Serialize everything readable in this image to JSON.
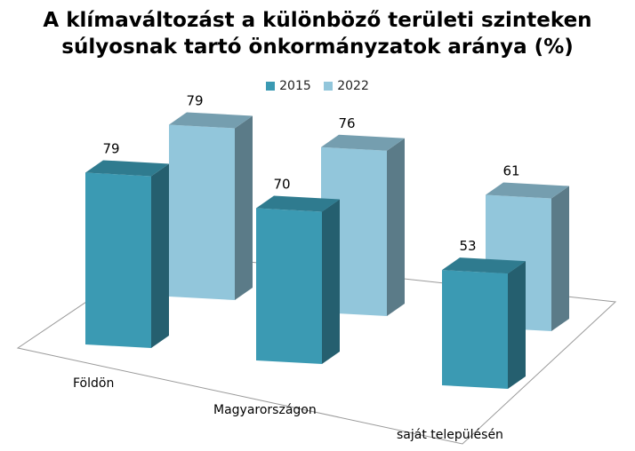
{
  "chart_data": {
    "type": "bar",
    "title_lines": [
      "A klímaváltozást a különböző területi szinteken",
      "súlyosnak tartó önkormányzatok aránya (%)"
    ],
    "categories": [
      "Földön",
      "Magyarországon",
      "saját településén"
    ],
    "series": [
      {
        "name": "2015",
        "values": [
          79,
          70,
          53
        ],
        "color": "#3b9ab3"
      },
      {
        "name": "2022",
        "values": [
          79,
          76,
          61
        ],
        "color": "#92c6db"
      }
    ],
    "ylim": [
      0,
      100
    ],
    "grid": false,
    "legend_position": "top",
    "bar_style": "3d"
  }
}
